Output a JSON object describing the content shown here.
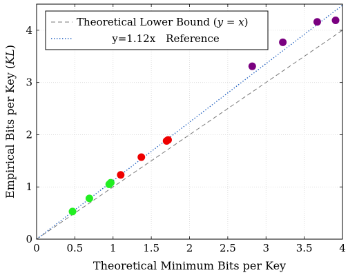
{
  "chart_data": {
    "type": "scatter",
    "xlabel": "Theoretical Minimum Bits per Key",
    "ylabel": "Empirical Bits per Key (KL)",
    "xlim": [
      0,
      4
    ],
    "ylim": [
      0,
      4.5
    ],
    "x_ticks": [
      "0",
      "0.5",
      "1",
      "1.5",
      "2",
      "2.5",
      "3",
      "3.5",
      "4"
    ],
    "y_ticks": [
      "0",
      "1",
      "2",
      "3",
      "4"
    ],
    "grid": true,
    "legend_position": "top-left",
    "legend": [
      {
        "label": "Theoretical Lower Bound (y = x)",
        "style": "dashed",
        "color": "#777777"
      },
      {
        "label": "y=1.12x Reference",
        "style": "dotted",
        "color": "#1f5fbf"
      }
    ],
    "lines": [
      {
        "slope": 1.0,
        "style": "dashed",
        "color": "#777777"
      },
      {
        "slope": 1.12,
        "style": "dotted",
        "color": "#1f5fbf"
      }
    ],
    "point_groups": [
      {
        "color": "#22ee22",
        "points": [
          [
            0.47,
            0.53
          ],
          [
            0.69,
            0.78
          ],
          [
            0.95,
            1.05
          ],
          [
            0.97,
            1.08
          ]
        ]
      },
      {
        "color": "#ee0000",
        "points": [
          [
            1.1,
            1.23
          ],
          [
            1.37,
            1.57
          ],
          [
            1.7,
            1.88
          ],
          [
            1.72,
            1.9
          ]
        ]
      },
      {
        "color": "#7a0080",
        "points": [
          [
            2.82,
            3.31
          ],
          [
            3.22,
            3.77
          ],
          [
            3.67,
            4.16
          ],
          [
            3.91,
            4.19
          ]
        ]
      }
    ]
  }
}
